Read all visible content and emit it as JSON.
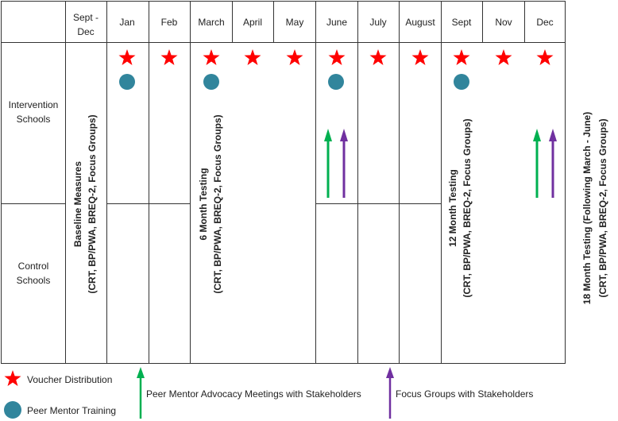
{
  "header": {
    "first_col_lines": [
      "Sept -",
      "Dec"
    ],
    "months": [
      "Jan",
      "Feb",
      "March",
      "April",
      "May",
      "June",
      "July",
      "August",
      "Sept",
      "Nov",
      "Dec"
    ]
  },
  "rows": {
    "intervention": [
      "Intervention",
      "Schools"
    ],
    "control": [
      "Control",
      "Schools"
    ]
  },
  "testing": {
    "baseline": [
      "Baseline Measures",
      "(CRT, BP/PWA, BREQ-2, Focus Groups)"
    ],
    "six_month": [
      "6 Month Testing",
      "(CRT, BP/PWA, BREQ-2, Focus Groups)"
    ],
    "twelve_month": [
      "12 Month Testing",
      "(CRT, BP/PWA, BREQ-2, Focus Groups)"
    ],
    "eighteen_month": [
      "18 Month Testing (Following March - June)",
      "(CRT, BP/PWA, BREQ-2, Focus Groups)"
    ]
  },
  "legend": {
    "voucher": "Voucher Distribution",
    "peer_training": "Peer Mentor Training",
    "advocacy": "Peer Mentor Advocacy Meetings with Stakeholders",
    "focus": "Focus Groups with Stakeholders"
  },
  "colors": {
    "star": "#ff0000",
    "circle": "#31859c",
    "green_arrow": "#00b050",
    "purple_arrow": "#7030a0",
    "grid": "#333333"
  }
}
